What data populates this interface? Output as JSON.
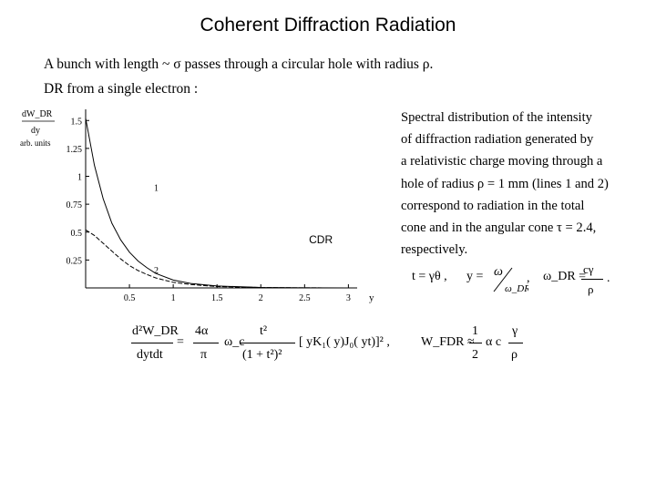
{
  "title": "Coherent Diffraction Radiation",
  "intro": {
    "line1": "A bunch with length ~ σ passes through a circular hole with radius ρ.",
    "line2": "DR from a single electron :"
  },
  "description": [
    "Spectral distribution  of the intensity",
    "of diffraction radiation generated by",
    "a relativistic charge moving through a",
    "hole of radius ρ = 1 mm (lines 1 and 2)",
    "correspond to radiation in the total",
    "cone and in the angular cone τ = 2.4,",
    "respectively."
  ],
  "definitions": {
    "t": "t = γθ ,",
    "y_lhs": "y =",
    "y_num": "ω",
    "y_den": "ω_DR",
    "y_comma": ",",
    "omega_lhs": "ω_DR =",
    "omega_num": "cγ",
    "omega_den": "ρ",
    "omega_end": "."
  },
  "main_equation": {
    "lhs_num": "d²W_DR",
    "lhs_den": "dytdt",
    "coef_num": "4α",
    "coef_den": "π",
    "omega": "ω_c",
    "frac_num": "t²",
    "frac_den": "(1 + t²)²",
    "bracket": "[ yK₁( y)J₀( yt)]² ,",
    "wfdr_lhs": "W_FDR ≈",
    "wfdr_num": "1",
    "wfdr_den": "2",
    "wfdr_mid": "α c",
    "wfdr_frac_num": "γ",
    "wfdr_frac_den": "ρ"
  },
  "chart_data": {
    "type": "line",
    "title": "",
    "ylabel": {
      "top": "dW_DR",
      "middle": "dy",
      "bottom": "arb. units"
    },
    "xlabel": "y",
    "xlim": [
      0,
      3.1
    ],
    "ylim": [
      0,
      1.6
    ],
    "xticks": [
      {
        "value": 0.5,
        "label": "0.5"
      },
      {
        "value": 1,
        "label": "1"
      },
      {
        "value": 1.5,
        "label": "1.5"
      },
      {
        "value": 2,
        "label": "2"
      },
      {
        "value": 2.5,
        "label": "2.5"
      },
      {
        "value": 3,
        "label": "3"
      }
    ],
    "yticks": [
      {
        "value": 0.25,
        "label": "0.25"
      },
      {
        "value": 0.5,
        "label": "0.5"
      },
      {
        "value": 0.75,
        "label": "0.75"
      },
      {
        "value": 1,
        "label": "1"
      },
      {
        "value": 1.25,
        "label": "1.25"
      },
      {
        "value": 1.5,
        "label": "1.5"
      }
    ],
    "series": [
      {
        "name": "1",
        "x": [
          0,
          0.1,
          0.2,
          0.3,
          0.4,
          0.5,
          0.6,
          0.7,
          0.8,
          1.0,
          1.2,
          1.5,
          2.0,
          2.5,
          3.0
        ],
        "y": [
          1.52,
          1.1,
          0.8,
          0.58,
          0.43,
          0.32,
          0.24,
          0.18,
          0.13,
          0.07,
          0.04,
          0.017,
          0.004,
          0.001,
          0
        ]
      },
      {
        "name": "2",
        "x": [
          0,
          0.1,
          0.2,
          0.3,
          0.4,
          0.5,
          0.6,
          0.7,
          0.8,
          1.0,
          1.2,
          1.5,
          2.0,
          2.5,
          3.0
        ],
        "y": [
          0.52,
          0.47,
          0.4,
          0.33,
          0.26,
          0.2,
          0.155,
          0.12,
          0.09,
          0.05,
          0.03,
          0.012,
          0.003,
          0.001,
          0
        ]
      }
    ],
    "annotations": [
      {
        "text": "1",
        "x": 0.78,
        "y": 0.87
      },
      {
        "text": "2",
        "x": 0.78,
        "y": 0.13
      },
      {
        "text": "CDR",
        "x": 2.55,
        "y": 0.4
      }
    ]
  }
}
